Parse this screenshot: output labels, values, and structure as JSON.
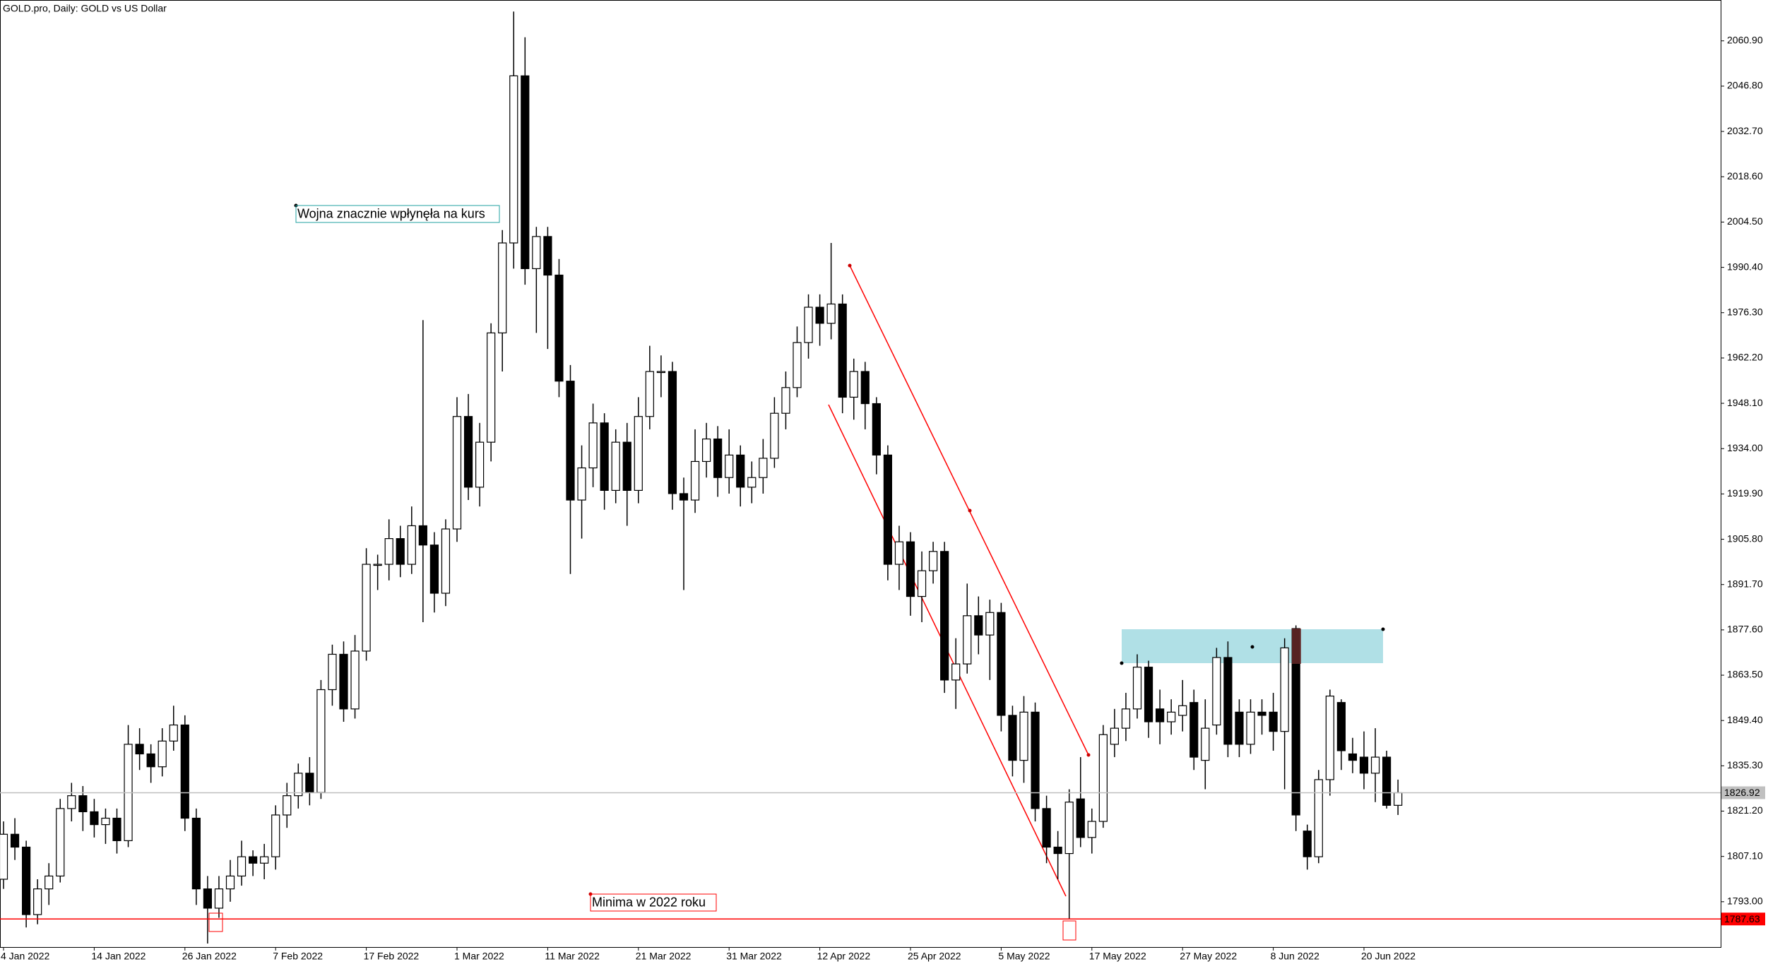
{
  "chart_data": {
    "type": "candlestick",
    "title": "GOLD.pro, Daily:  GOLD vs US Dollar",
    "categories": [
      "4 Jan 2022",
      null,
      null,
      null,
      null,
      null,
      null,
      null,
      "14 Jan 2022",
      null,
      null,
      null,
      null,
      null,
      null,
      null,
      "26 Jan 2022",
      null,
      null,
      null,
      null,
      null,
      null,
      null,
      "7 Feb 2022",
      null,
      null,
      null,
      null,
      null,
      null,
      null,
      "17 Feb 2022",
      null,
      null,
      null,
      null,
      null,
      null,
      null,
      "1 Mar 2022",
      null,
      null,
      null,
      null,
      null,
      null,
      null,
      "11 Mar 2022",
      null,
      null,
      null,
      null,
      null,
      null,
      null,
      "21 Mar 2022",
      null,
      null,
      null,
      null,
      null,
      null,
      null,
      "31 Mar 2022",
      null,
      null,
      null,
      null,
      null,
      null,
      null,
      "12 Apr 2022",
      null,
      null,
      null,
      null,
      null,
      null,
      null,
      "25 Apr 2022",
      null,
      null,
      null,
      null,
      null,
      null,
      null,
      "5 May 2022",
      null,
      null,
      null,
      null,
      null,
      null,
      null,
      "17 May 2022",
      null,
      null,
      null,
      null,
      null,
      null,
      null,
      "27 May 2022",
      null,
      null,
      null,
      null,
      null,
      null,
      null,
      "8 Jun 2022",
      null,
      null,
      null,
      null,
      null,
      null,
      null,
      "20 Jun 2022",
      null,
      null,
      null
    ],
    "open": [
      1800,
      1814,
      1810,
      1789,
      1797,
      1801,
      1822,
      1826,
      1821,
      1817,
      1819,
      1812,
      1842,
      1839,
      1835,
      1843,
      1848,
      1819,
      1797,
      1791,
      1797,
      1801,
      1807,
      1805,
      1807,
      1820,
      1826,
      1833,
      1827,
      1859,
      1870,
      1853,
      1871,
      1898,
      1898,
      1906,
      1898,
      1910,
      1904,
      1889,
      1909,
      1944,
      1922,
      1936,
      1970,
      1998,
      2050,
      1990,
      2000,
      1988,
      1955,
      1918,
      1928,
      1942,
      1921,
      1936,
      1921,
      1944,
      1958,
      1958,
      1920,
      1918,
      1930,
      1937,
      1925,
      1932,
      1922,
      1925,
      1931,
      1945,
      1953,
      1967,
      1978,
      1973,
      1979,
      1950,
      1958,
      1948,
      1932,
      1898,
      1905,
      1888,
      1896,
      1902,
      1862,
      1867,
      1882,
      1876,
      1883,
      1851,
      1837,
      1852,
      1822,
      1810,
      1808,
      1825,
      1813,
      1818,
      1842,
      1847,
      1853,
      1866,
      1853,
      1849,
      1851,
      1855,
      1837,
      1848,
      1869,
      1852,
      1842,
      1852,
      1852,
      1846,
      1878,
      1815,
      1807,
      1831,
      1855,
      1839,
      1838,
      1833,
      1838,
      1823
    ],
    "high": [
      1818,
      1819,
      1812,
      1800,
      1805,
      1825,
      1830,
      1829,
      1825,
      1822,
      1822,
      1848,
      1847,
      1842,
      1847,
      1854,
      1851,
      1822,
      1801,
      1801,
      1806,
      1812,
      1809,
      1811,
      1823,
      1830,
      1836,
      1838,
      1862,
      1873,
      1874,
      1876,
      1903,
      1901,
      1912,
      1910,
      1916,
      1974,
      1908,
      1912,
      1950,
      1951,
      1942,
      1973,
      2002,
      2070,
      2062,
      2003,
      2003,
      1993,
      1960,
      1935,
      1948,
      1945,
      1940,
      1942,
      1950,
      1966,
      1963,
      1961,
      1925,
      1940,
      1942,
      1941,
      1940,
      1935,
      1930,
      1937,
      1950,
      1958,
      1972,
      1982,
      1982,
      1998,
      1982,
      1962,
      1961,
      1950,
      1935,
      1910,
      1908,
      1902,
      1905,
      1905,
      1875,
      1892,
      1888,
      1887,
      1886,
      1854,
      1857,
      1855,
      1826,
      1815,
      1828,
      1838,
      1822,
      1848,
      1853,
      1858,
      1870,
      1868,
      1859,
      1856,
      1862,
      1859,
      1856,
      1872,
      1874,
      1856,
      1856,
      1856,
      1858,
      1875,
      1879,
      1817,
      1834,
      1859,
      1856,
      1844,
      1846,
      1847,
      1840,
      1831
    ],
    "low": [
      1797,
      1806,
      1785,
      1786,
      1792,
      1799,
      1818,
      1815,
      1813,
      1811,
      1808,
      1810,
      1834,
      1830,
      1832,
      1840,
      1815,
      1792,
      1780,
      1788,
      1793,
      1798,
      1801,
      1800,
      1803,
      1816,
      1822,
      1823,
      1825,
      1854,
      1849,
      1850,
      1868,
      1890,
      1893,
      1894,
      1895,
      1880,
      1883,
      1885,
      1905,
      1918,
      1916,
      1930,
      1958,
      1990,
      1985,
      1970,
      1965,
      1950,
      1895,
      1906,
      1922,
      1915,
      1917,
      1910,
      1917,
      1940,
      1950,
      1915,
      1890,
      1914,
      1925,
      1919,
      1920,
      1916,
      1917,
      1920,
      1928,
      1940,
      1950,
      1962,
      1966,
      1968,
      1945,
      1943,
      1940,
      1926,
      1893,
      1890,
      1882,
      1880,
      1892,
      1858,
      1853,
      1864,
      1870,
      1862,
      1846,
      1832,
      1830,
      1818,
      1805,
      1800,
      1787.63,
      1810,
      1808,
      1816,
      1838,
      1843,
      1850,
      1844,
      1842,
      1845,
      1846,
      1834,
      1828,
      1845,
      1838,
      1838,
      1839,
      1845,
      1840,
      1828,
      1815,
      1803,
      1805,
      1826,
      1834,
      1833,
      1828,
      1824,
      1822,
      1820
    ],
    "close": [
      1814,
      1810,
      1789,
      1797,
      1801,
      1822,
      1826,
      1821,
      1817,
      1819,
      1812,
      1842,
      1839,
      1835,
      1843,
      1848,
      1819,
      1797,
      1791,
      1797,
      1801,
      1807,
      1805,
      1807,
      1820,
      1826,
      1833,
      1827,
      1859,
      1870,
      1853,
      1871,
      1898,
      1898,
      1906,
      1898,
      1910,
      1904,
      1889,
      1909,
      1944,
      1922,
      1936,
      1970,
      1998,
      2050,
      1990,
      2000,
      1988,
      1955,
      1918,
      1928,
      1942,
      1921,
      1936,
      1921,
      1944,
      1958,
      1958,
      1920,
      1918,
      1930,
      1937,
      1925,
      1932,
      1922,
      1925,
      1931,
      1945,
      1953,
      1967,
      1978,
      1973,
      1979,
      1950,
      1958,
      1948,
      1932,
      1898,
      1905,
      1888,
      1896,
      1902,
      1862,
      1867,
      1882,
      1876,
      1883,
      1851,
      1837,
      1852,
      1822,
      1810,
      1808,
      1824,
      1813,
      1818,
      1845,
      1847,
      1853,
      1866,
      1849,
      1849,
      1852,
      1854,
      1838,
      1847,
      1869,
      1842,
      1842,
      1852,
      1851,
      1846,
      1872,
      1820,
      1807,
      1831,
      1857,
      1840,
      1837,
      1833,
      1838,
      1823,
      1826.92
    ],
    "bull_color": "#ffffff",
    "bear_color": "#000000",
    "ylim": [
      1778.9,
      2073.6
    ],
    "yticks": [
      {
        "value": 1793.0,
        "label": "1793.00"
      },
      {
        "value": 1807.1,
        "label": "1807.10"
      },
      {
        "value": 1821.2,
        "label": "1821.20"
      },
      {
        "value": 1835.3,
        "label": "1835.30"
      },
      {
        "value": 1849.4,
        "label": "1849.40"
      },
      {
        "value": 1863.5,
        "label": "1863.50"
      },
      {
        "value": 1877.6,
        "label": "1877.60"
      },
      {
        "value": 1891.7,
        "label": "1891.70"
      },
      {
        "value": 1905.8,
        "label": "1905.80"
      },
      {
        "value": 1919.9,
        "label": "1919.90"
      },
      {
        "value": 1934.0,
        "label": "1934.00"
      },
      {
        "value": 1948.1,
        "label": "1948.10"
      },
      {
        "value": 1962.2,
        "label": "1962.20"
      },
      {
        "value": 1976.3,
        "label": "1976.30"
      },
      {
        "value": 1990.4,
        "label": "1990.40"
      },
      {
        "value": 2004.5,
        "label": "2004.50"
      },
      {
        "value": 2018.6,
        "label": "2018.60"
      },
      {
        "value": 2032.7,
        "label": "2032.70"
      },
      {
        "value": 2046.8,
        "label": "2046.80"
      },
      {
        "value": 2060.9,
        "label": "2060.90"
      }
    ],
    "current_price": {
      "value": 1826.92,
      "color": "#c0c0c0"
    },
    "hline": {
      "value": 1787.63,
      "color": "#ff0000"
    },
    "annotations": [
      {
        "text": "Wojna znacznie wpłynęła na kurs",
        "color": "#20a0a0"
      },
      {
        "text": "Minima w 2022 roku",
        "color": "#ff0000"
      }
    ],
    "grid": false
  }
}
